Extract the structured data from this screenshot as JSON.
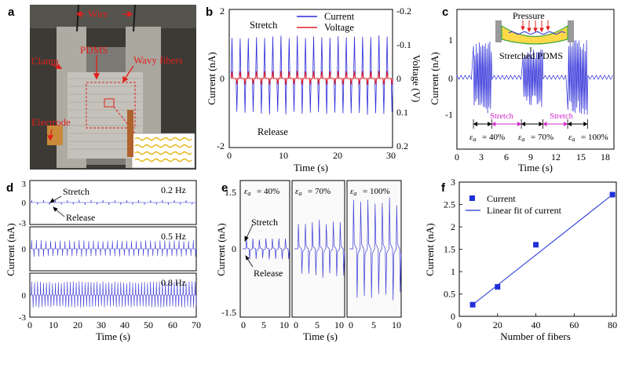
{
  "panels": {
    "a": {
      "letter": "a",
      "labels": {
        "wire": "Wire",
        "pdms": "PDMS",
        "clamp": "Clamp",
        "wavy": "Wavy fibers",
        "electrode": "Electrode"
      },
      "colors": {
        "label": "#e0201c",
        "background": "#3d3a35",
        "metal": "#b9b6ae",
        "wave": "#e5b512"
      }
    },
    "b": {
      "letter": "b",
      "text": {
        "stretch": "Stretch",
        "release": "Release"
      }
    },
    "c": {
      "letter": "c",
      "text": {
        "pressure": "Pressure",
        "stretched_pdms": "Stretched PDMS",
        "stretch1": "Stretch",
        "stretch2": "Stretch",
        "e40": "= 40%",
        "e70": "= 70%",
        "e100": "= 100%"
      },
      "colors": {
        "stretch_arrow": "#d02bc8"
      }
    },
    "d": {
      "letter": "d",
      "text": {
        "stretch": "Stretch",
        "release": "Release"
      }
    },
    "e": {
      "letter": "e",
      "text": {
        "stretch": "Stretch",
        "release": "Release",
        "e40": "= 40%",
        "e70": "= 70%",
        "e100": "= 100%"
      }
    },
    "f": {
      "letter": "f"
    }
  },
  "chart_data": [
    {
      "id": "b",
      "type": "line",
      "xlabel": "Time (s)",
      "ylabel": "Current (nA)",
      "y2label": "Voltage (V)",
      "xlim": [
        0,
        30
      ],
      "ylim": [
        -2,
        2
      ],
      "y2lim": [
        -0.2,
        0.2
      ],
      "y2_inverted": true,
      "xticks": [
        "0",
        "10",
        "20",
        "30"
      ],
      "yticks": [
        "-2",
        "0",
        "2"
      ],
      "y2ticks": [
        "-0.2",
        "-0.1",
        "0",
        "0.1",
        "0.2"
      ],
      "legend_position": "top-right",
      "series": [
        {
          "name": "Current",
          "color": "#2a2ad8",
          "period_s": 1.5,
          "amp_up": 1.25,
          "amp_down": 1.05
        },
        {
          "name": "Voltage",
          "color": "#e0202a",
          "period_s": 1.5,
          "amp_up": 0.22,
          "amp_down": 0.18
        }
      ]
    },
    {
      "id": "c",
      "type": "line",
      "xlabel": "Time (s)",
      "ylabel": "Current (nA)",
      "xlim": [
        0,
        19
      ],
      "ylim": [
        -1.8,
        1.7
      ],
      "xticks": [
        "0",
        "3",
        "6",
        "9",
        "12",
        "15",
        "18"
      ],
      "yticks": [
        "-1",
        "0",
        "1"
      ],
      "series": [
        {
          "name": "",
          "color": "#2a2ad8",
          "bursts": [
            {
              "start": 2.0,
              "end": 4.2,
              "amp": 0.9
            },
            {
              "start": 7.8,
              "end": 10.4,
              "amp": 0.75
            },
            {
              "start": 13.4,
              "end": 15.8,
              "amp": 0.95
            }
          ]
        }
      ],
      "strain_segments": [
        {
          "start": 2.0,
          "end": 4.2,
          "label": "e40"
        },
        {
          "start": 4.2,
          "end": 7.8,
          "label": "stretch1"
        },
        {
          "start": 7.8,
          "end": 10.4,
          "label": "e70"
        },
        {
          "start": 10.4,
          "end": 13.4,
          "label": "stretch2"
        },
        {
          "start": 13.4,
          "end": 15.8,
          "label": "e100"
        }
      ]
    },
    {
      "id": "d",
      "type": "line",
      "xlabel": "Time (s)",
      "ylabel": "Current (nA)",
      "xlim": [
        0,
        70
      ],
      "ylim": [
        -3,
        3
      ],
      "xticks": [
        "0",
        "10",
        "20",
        "30",
        "40",
        "50",
        "60",
        "70"
      ],
      "yticks": [
        "-3",
        "0",
        "3"
      ],
      "subplots": [
        {
          "frequency": "0.2 Hz",
          "freq_hz": 0.2,
          "amp": 0.35
        },
        {
          "frequency": "0.5 Hz",
          "freq_hz": 0.5,
          "amp": 1.2
        },
        {
          "frequency": "0.8 Hz",
          "freq_hz": 0.8,
          "amp": 1.9
        }
      ]
    },
    {
      "id": "e",
      "type": "line",
      "xlabel": "Time (s)",
      "ylabel": "Current (nA)",
      "xlim": [
        0,
        11
      ],
      "ylim": [
        -1.5,
        1.5
      ],
      "xticks": [
        "0",
        "5",
        "10"
      ],
      "yticks": [
        "-1.5",
        "0",
        "1.5"
      ],
      "subplots": [
        {
          "strain": "e40",
          "amp": 0.25
        },
        {
          "strain": "e70",
          "amp": 0.7
        },
        {
          "strain": "e100",
          "amp": 1.25
        }
      ]
    },
    {
      "id": "f",
      "type": "scatter",
      "xlabel": "Number of fibers",
      "ylabel": "Current (nA)",
      "xlim": [
        0,
        82
      ],
      "ylim": [
        0,
        3
      ],
      "xticks": [
        "0",
        "20",
        "40",
        "60",
        "80"
      ],
      "yticks": [
        "0",
        "0.5",
        "1",
        "1.5",
        "2",
        "2.5",
        "3"
      ],
      "legend_position": "top-left",
      "series": [
        {
          "name": "Current",
          "color": "#1f2fd8",
          "points": [
            [
              7,
              0.26
            ],
            [
              20,
              0.66
            ],
            [
              40,
              1.6
            ],
            [
              80,
              2.72
            ]
          ]
        },
        {
          "name": "Linear fit of current",
          "color": "#1f2fd8",
          "line": [
            [
              7,
              0.26
            ],
            [
              80,
              2.72
            ]
          ]
        }
      ]
    }
  ]
}
